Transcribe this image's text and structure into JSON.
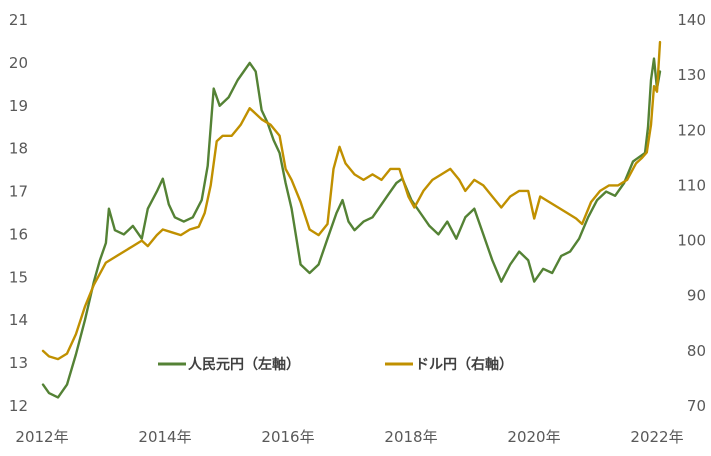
{
  "chart_data": {
    "type": "line",
    "title": "",
    "xlabel": "",
    "ylabel_left": "",
    "ylabel_right": "",
    "x_ticks": [
      "2012年",
      "2014年",
      "2016年",
      "2018年",
      "2020年",
      "2022年"
    ],
    "x_range": [
      2012.0,
      2022.3
    ],
    "y_left": {
      "range": [
        12,
        21
      ],
      "ticks": [
        12,
        13,
        14,
        15,
        16,
        17,
        18,
        19,
        20,
        21
      ]
    },
    "y_right": {
      "range": [
        70,
        140
      ],
      "ticks": [
        70,
        80,
        90,
        100,
        110,
        120,
        130,
        140
      ]
    },
    "grid": false,
    "legend_position": "bottom-center",
    "series": [
      {
        "name": "人民元円（左軸）",
        "axis": "left",
        "color": "#548235",
        "points": [
          [
            2012.0,
            12.5
          ],
          [
            2012.1,
            12.3
          ],
          [
            2012.25,
            12.2
          ],
          [
            2012.4,
            12.5
          ],
          [
            2012.55,
            13.2
          ],
          [
            2012.7,
            14.0
          ],
          [
            2012.85,
            14.9
          ],
          [
            2012.95,
            15.4
          ],
          [
            2013.05,
            15.8
          ],
          [
            2013.1,
            16.6
          ],
          [
            2013.2,
            16.1
          ],
          [
            2013.35,
            16.0
          ],
          [
            2013.5,
            16.2
          ],
          [
            2013.65,
            15.9
          ],
          [
            2013.75,
            16.6
          ],
          [
            2013.9,
            17.0
          ],
          [
            2014.0,
            17.3
          ],
          [
            2014.1,
            16.7
          ],
          [
            2014.2,
            16.4
          ],
          [
            2014.35,
            16.3
          ],
          [
            2014.5,
            16.4
          ],
          [
            2014.65,
            16.8
          ],
          [
            2014.75,
            17.6
          ],
          [
            2014.85,
            19.4
          ],
          [
            2014.95,
            19.0
          ],
          [
            2015.1,
            19.2
          ],
          [
            2015.25,
            19.6
          ],
          [
            2015.35,
            19.8
          ],
          [
            2015.45,
            20.0
          ],
          [
            2015.55,
            19.8
          ],
          [
            2015.65,
            18.9
          ],
          [
            2015.75,
            18.6
          ],
          [
            2015.85,
            18.2
          ],
          [
            2015.95,
            17.9
          ],
          [
            2016.05,
            17.2
          ],
          [
            2016.15,
            16.6
          ],
          [
            2016.3,
            15.3
          ],
          [
            2016.45,
            15.1
          ],
          [
            2016.6,
            15.3
          ],
          [
            2016.75,
            15.9
          ],
          [
            2016.9,
            16.5
          ],
          [
            2017.0,
            16.8
          ],
          [
            2017.1,
            16.3
          ],
          [
            2017.2,
            16.1
          ],
          [
            2017.35,
            16.3
          ],
          [
            2017.5,
            16.4
          ],
          [
            2017.6,
            16.6
          ],
          [
            2017.75,
            16.9
          ],
          [
            2017.9,
            17.2
          ],
          [
            2018.0,
            17.3
          ],
          [
            2018.15,
            16.8
          ],
          [
            2018.3,
            16.5
          ],
          [
            2018.45,
            16.2
          ],
          [
            2018.6,
            16.0
          ],
          [
            2018.75,
            16.3
          ],
          [
            2018.9,
            15.9
          ],
          [
            2019.05,
            16.4
          ],
          [
            2019.2,
            16.6
          ],
          [
            2019.35,
            16.0
          ],
          [
            2019.5,
            15.4
          ],
          [
            2019.65,
            14.9
          ],
          [
            2019.8,
            15.3
          ],
          [
            2019.95,
            15.6
          ],
          [
            2020.1,
            15.4
          ],
          [
            2020.2,
            14.9
          ],
          [
            2020.35,
            15.2
          ],
          [
            2020.5,
            15.1
          ],
          [
            2020.65,
            15.5
          ],
          [
            2020.8,
            15.6
          ],
          [
            2020.95,
            15.9
          ],
          [
            2021.1,
            16.4
          ],
          [
            2021.25,
            16.8
          ],
          [
            2021.4,
            17.0
          ],
          [
            2021.55,
            16.9
          ],
          [
            2021.7,
            17.2
          ],
          [
            2021.85,
            17.7
          ],
          [
            2021.95,
            17.8
          ],
          [
            2022.05,
            17.9
          ],
          [
            2022.1,
            18.5
          ],
          [
            2022.15,
            19.6
          ],
          [
            2022.2,
            20.1
          ],
          [
            2022.25,
            19.4
          ],
          [
            2022.3,
            19.8
          ]
        ]
      },
      {
        "name": "ドル円（右軸）",
        "axis": "right",
        "color": "#C09000",
        "points": [
          [
            2012.0,
            80
          ],
          [
            2012.1,
            79
          ],
          [
            2012.25,
            78.5
          ],
          [
            2012.4,
            79.5
          ],
          [
            2012.55,
            83
          ],
          [
            2012.7,
            88
          ],
          [
            2012.85,
            92
          ],
          [
            2012.95,
            94
          ],
          [
            2013.05,
            96
          ],
          [
            2013.2,
            97
          ],
          [
            2013.35,
            98
          ],
          [
            2013.5,
            99
          ],
          [
            2013.65,
            100
          ],
          [
            2013.75,
            99
          ],
          [
            2013.9,
            101
          ],
          [
            2014.0,
            102
          ],
          [
            2014.15,
            101.5
          ],
          [
            2014.3,
            101
          ],
          [
            2014.45,
            102
          ],
          [
            2014.6,
            102.5
          ],
          [
            2014.7,
            105
          ],
          [
            2014.8,
            110
          ],
          [
            2014.9,
            118
          ],
          [
            2015.0,
            119
          ],
          [
            2015.15,
            119
          ],
          [
            2015.3,
            121
          ],
          [
            2015.45,
            124
          ],
          [
            2015.55,
            123
          ],
          [
            2015.65,
            122
          ],
          [
            2015.8,
            121
          ],
          [
            2015.95,
            119
          ],
          [
            2016.05,
            113
          ],
          [
            2016.15,
            111
          ],
          [
            2016.3,
            107
          ],
          [
            2016.45,
            102
          ],
          [
            2016.6,
            101
          ],
          [
            2016.75,
            103
          ],
          [
            2016.85,
            113
          ],
          [
            2016.95,
            117
          ],
          [
            2017.05,
            114
          ],
          [
            2017.2,
            112
          ],
          [
            2017.35,
            111
          ],
          [
            2017.5,
            112
          ],
          [
            2017.65,
            111
          ],
          [
            2017.8,
            113
          ],
          [
            2017.95,
            113
          ],
          [
            2018.1,
            108
          ],
          [
            2018.2,
            106
          ],
          [
            2018.35,
            109
          ],
          [
            2018.5,
            111
          ],
          [
            2018.65,
            112
          ],
          [
            2018.8,
            113
          ],
          [
            2018.95,
            111
          ],
          [
            2019.05,
            109
          ],
          [
            2019.2,
            111
          ],
          [
            2019.35,
            110
          ],
          [
            2019.5,
            108
          ],
          [
            2019.65,
            106
          ],
          [
            2019.8,
            108
          ],
          [
            2019.95,
            109
          ],
          [
            2020.1,
            109
          ],
          [
            2020.2,
            104
          ],
          [
            2020.3,
            108
          ],
          [
            2020.45,
            107
          ],
          [
            2020.6,
            106
          ],
          [
            2020.75,
            105
          ],
          [
            2020.9,
            104
          ],
          [
            2021.0,
            103
          ],
          [
            2021.15,
            107
          ],
          [
            2021.3,
            109
          ],
          [
            2021.45,
            110
          ],
          [
            2021.6,
            110
          ],
          [
            2021.75,
            111
          ],
          [
            2021.9,
            114
          ],
          [
            2022.0,
            115
          ],
          [
            2022.08,
            116
          ],
          [
            2022.15,
            121
          ],
          [
            2022.2,
            128
          ],
          [
            2022.25,
            127
          ],
          [
            2022.3,
            136
          ]
        ]
      }
    ]
  }
}
